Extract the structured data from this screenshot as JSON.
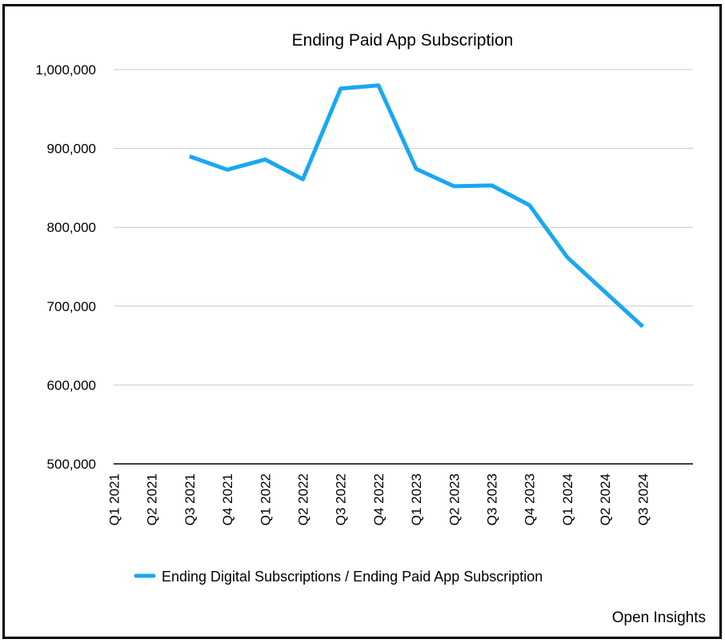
{
  "chart_data": {
    "type": "line",
    "title": "Ending Paid App Subscription",
    "xlabel": "",
    "ylabel": "",
    "categories": [
      "Q1 2021",
      "Q2 2021",
      "Q3 2021",
      "Q4 2021",
      "Q1 2022",
      "Q2 2022",
      "Q3 2022",
      "Q4 2022",
      "Q1 2023",
      "Q2 2023",
      "Q3 2023",
      "Q4 2023",
      "Q1 2024",
      "Q2 2024",
      "Q3 2024"
    ],
    "ylim": [
      500000,
      1000000
    ],
    "yticks": [
      500000,
      600000,
      700000,
      800000,
      900000,
      1000000
    ],
    "ytick_labels": [
      "500,000",
      "600,000",
      "700,000",
      "800,000",
      "900,000",
      "1,000,000"
    ],
    "grid": true,
    "legend_position": "bottom",
    "series": [
      {
        "name": "Ending Digital Subscriptions / Ending Paid App Subscription",
        "color": "#1aa7f2",
        "values": [
          null,
          null,
          890000,
          873000,
          886000,
          861000,
          976000,
          980000,
          874000,
          852000,
          853000,
          828000,
          762000,
          718000,
          674000
        ]
      }
    ]
  },
  "credit": "Open Insights"
}
